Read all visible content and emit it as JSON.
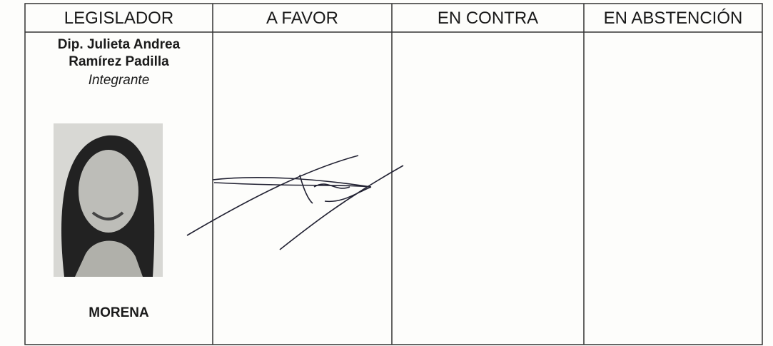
{
  "table": {
    "headers": [
      "LEGISLADOR",
      "A FAVOR",
      "EN CONTRA",
      "EN ABSTENCIÓN"
    ],
    "rows": [
      {
        "name": [
          "Dip. Julieta Andrea",
          "Ramírez Padilla"
        ],
        "role": "Integrante",
        "party": "MORENA"
      }
    ]
  }
}
